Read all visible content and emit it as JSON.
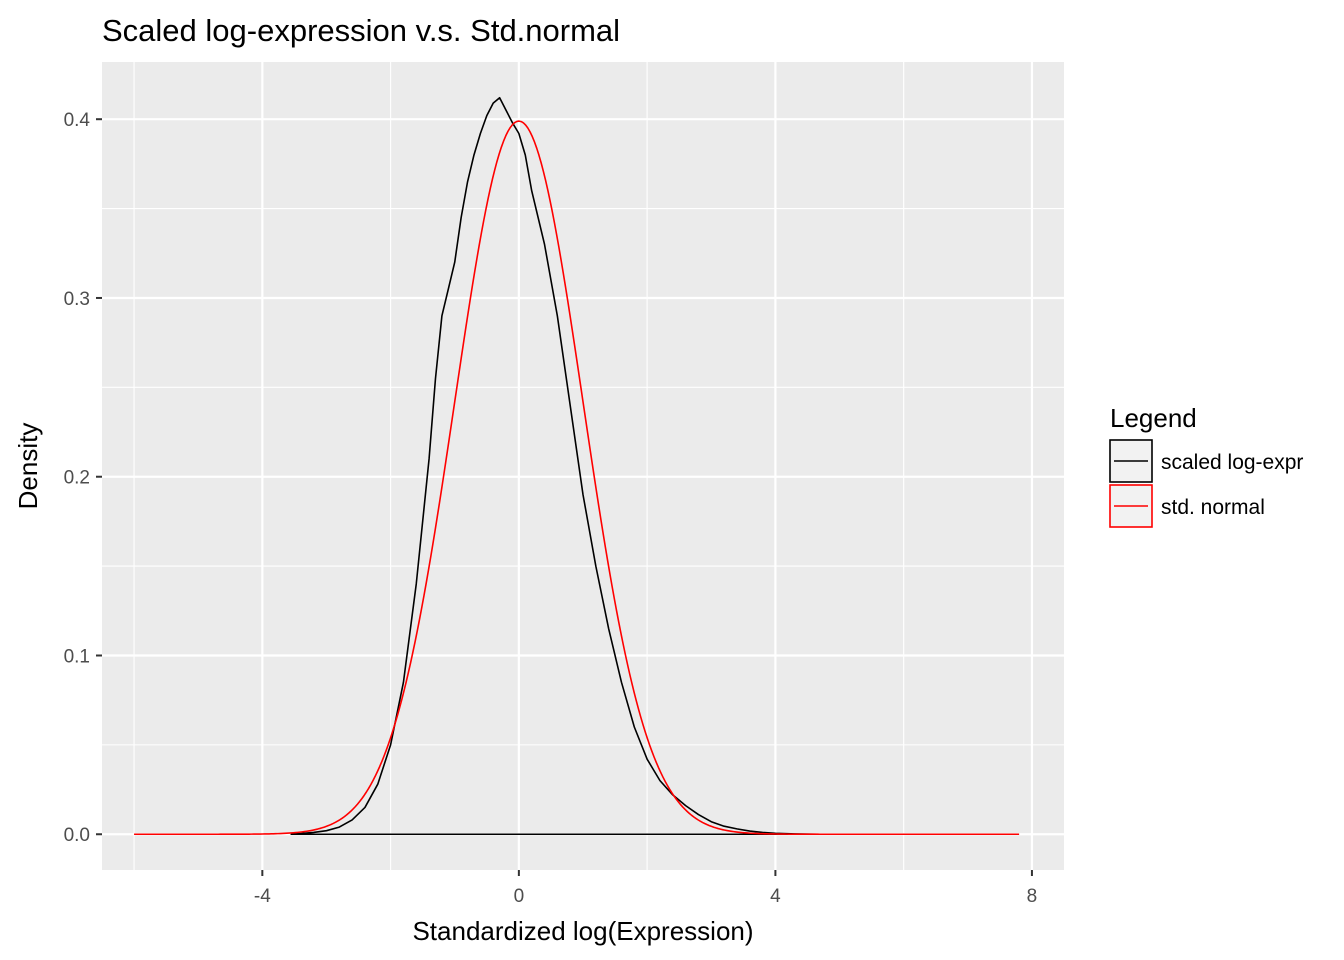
{
  "chart_data": {
    "type": "line",
    "title": "Scaled log-expression v.s. Std.normal",
    "xlabel": "Standardized log(Expression)",
    "ylabel": "Density",
    "xlim": [
      -6.5,
      8.5
    ],
    "ylim": [
      -0.02,
      0.432
    ],
    "x_ticks": [
      -4,
      0,
      4,
      8
    ],
    "x_tick_labels": [
      "-4",
      "0",
      "4",
      "8"
    ],
    "y_ticks": [
      0.0,
      0.1,
      0.2,
      0.3,
      0.4
    ],
    "y_tick_labels": [
      "0.0",
      "0.1",
      "0.2",
      "0.3",
      "0.4"
    ],
    "grid": true,
    "panel_background": "#ebebeb",
    "legend": {
      "title": "Legend",
      "position": "right",
      "entries": [
        "scaled log-expr",
        "std. normal"
      ]
    },
    "series": [
      {
        "name": "scaled log-expr",
        "color": "#000000",
        "closed_baseline": true,
        "x": [
          -3.55,
          -3.2,
          -3.0,
          -2.8,
          -2.6,
          -2.4,
          -2.2,
          -2.0,
          -1.8,
          -1.6,
          -1.4,
          -1.3,
          -1.2,
          -1.1,
          -1.0,
          -0.9,
          -0.8,
          -0.7,
          -0.6,
          -0.5,
          -0.4,
          -0.3,
          -0.2,
          -0.1,
          0.0,
          0.1,
          0.2,
          0.4,
          0.6,
          0.8,
          1.0,
          1.2,
          1.4,
          1.6,
          1.8,
          2.0,
          2.2,
          2.4,
          2.6,
          2.8,
          3.0,
          3.2,
          3.4,
          3.6,
          3.8,
          4.0,
          4.3,
          4.65
        ],
        "y": [
          0.0,
          0.001,
          0.002,
          0.004,
          0.008,
          0.015,
          0.028,
          0.05,
          0.085,
          0.14,
          0.21,
          0.255,
          0.29,
          0.305,
          0.32,
          0.345,
          0.365,
          0.38,
          0.392,
          0.402,
          0.409,
          0.412,
          0.405,
          0.398,
          0.392,
          0.38,
          0.36,
          0.33,
          0.29,
          0.24,
          0.19,
          0.15,
          0.115,
          0.085,
          0.06,
          0.042,
          0.03,
          0.022,
          0.016,
          0.011,
          0.007,
          0.0045,
          0.003,
          0.0018,
          0.001,
          0.0005,
          0.0002,
          0.0
        ]
      },
      {
        "name": "std. normal",
        "color": "#ff0000",
        "function": "standard-normal-pdf",
        "x_range": [
          -6.0,
          7.8
        ]
      }
    ]
  }
}
